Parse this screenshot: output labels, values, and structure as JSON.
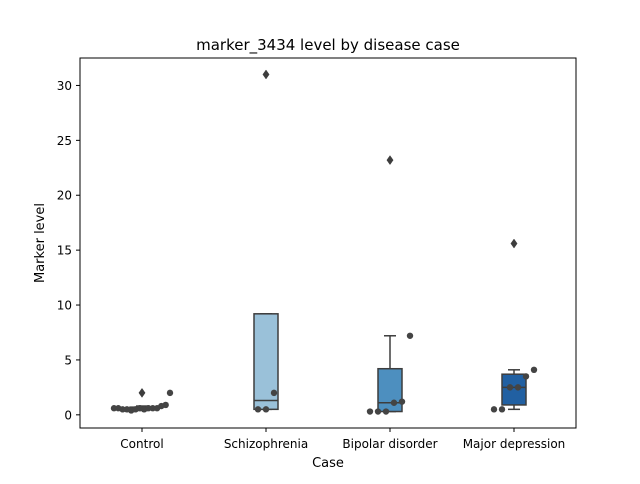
{
  "chart_data": {
    "type": "box",
    "title": "marker_3434 level by disease case",
    "xlabel": "Case",
    "ylabel": "Marker level",
    "ylim": [
      -1.2,
      32.5
    ],
    "yticks": [
      0,
      5,
      10,
      15,
      20,
      25,
      30
    ],
    "grid": false,
    "legend": "none",
    "categories": [
      "Control",
      "Schizophrenia",
      "Bipolar disorder",
      "Major depression"
    ],
    "colors": [
      "#d6e6f2",
      "#9ac1d9",
      "#4d8fbf",
      "#2160a2"
    ],
    "boxes": [
      {
        "q1": 0.5,
        "median": 0.6,
        "q3": 0.7,
        "whisker_low": 0.4,
        "whisker_high": 0.8,
        "outliers": [
          2.0
        ]
      },
      {
        "q1": 0.5,
        "median": 1.3,
        "q3": 9.2,
        "whisker_low": 0.5,
        "whisker_high": 9.2,
        "outliers": [
          31.0
        ]
      },
      {
        "q1": 0.3,
        "median": 1.1,
        "q3": 4.2,
        "whisker_low": 0.3,
        "whisker_high": 7.2,
        "outliers": [
          23.2
        ]
      },
      {
        "q1": 0.9,
        "median": 2.5,
        "q3": 3.7,
        "whisker_low": 0.5,
        "whisker_high": 4.1,
        "outliers": [
          15.6
        ]
      }
    ],
    "points": [
      [
        0.6,
        0.6,
        0.5,
        0.5,
        0.4,
        0.5,
        0.6,
        0.5,
        0.6,
        0.6,
        0.6,
        0.8,
        0.9,
        2.0
      ],
      [
        0.5,
        0.5,
        2.0
      ],
      [
        0.3,
        0.3,
        0.3,
        1.1,
        1.2,
        7.2
      ],
      [
        0.5,
        0.5,
        2.5,
        2.5,
        3.5,
        4.1
      ]
    ]
  }
}
